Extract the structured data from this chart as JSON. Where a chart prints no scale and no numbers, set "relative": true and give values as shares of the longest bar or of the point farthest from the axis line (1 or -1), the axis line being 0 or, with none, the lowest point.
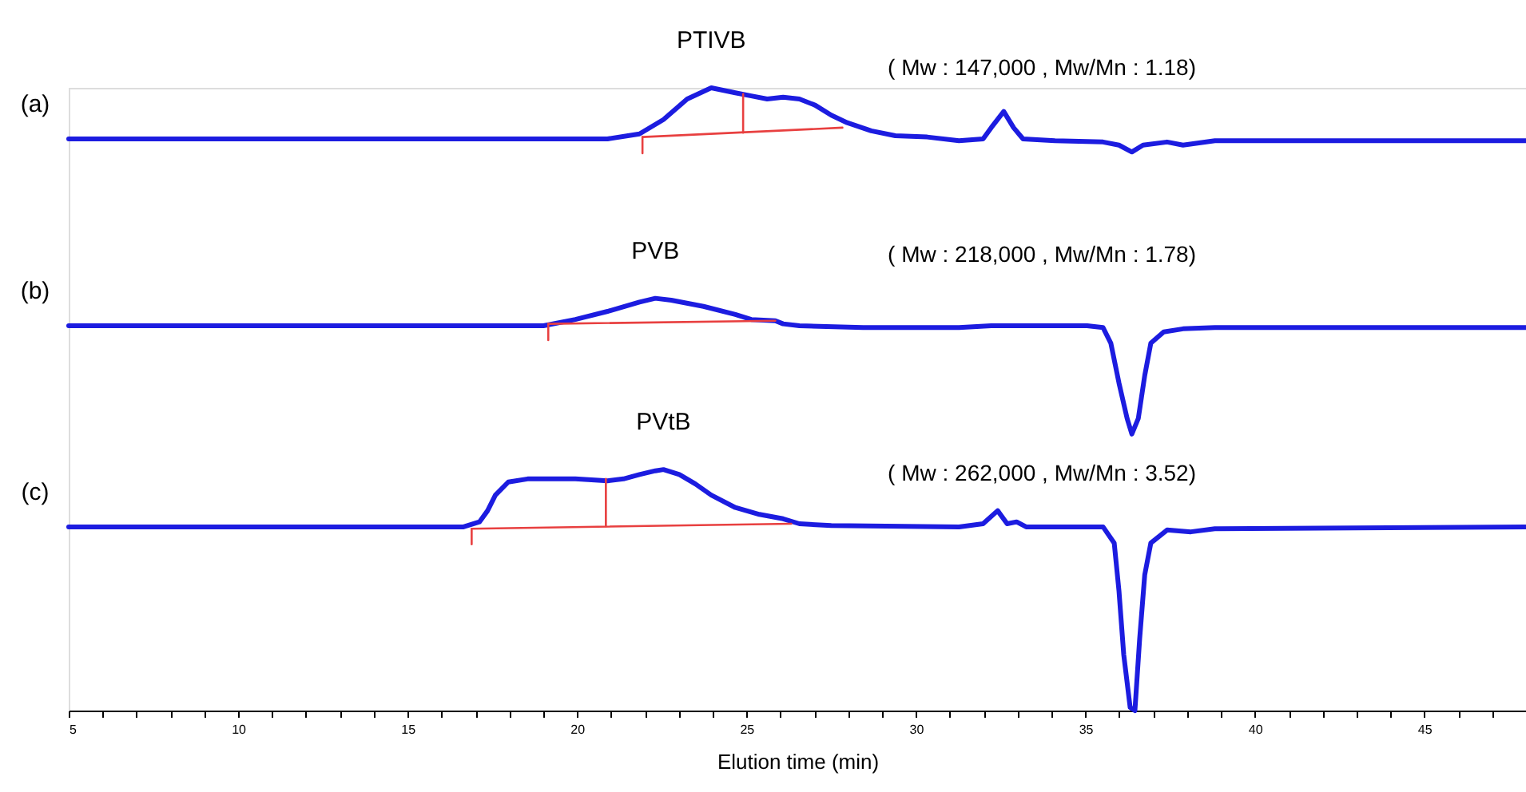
{
  "chart_data": {
    "type": "line",
    "relative": true,
    "xlabel": "Elution time (min)",
    "xlim": [
      5,
      48
    ],
    "xticks": [
      5,
      {
        "value": 6,
        "label": null
      },
      {
        "value": 7,
        "label": null
      },
      {
        "value": 8,
        "label": null
      },
      {
        "value": 9,
        "label": null
      },
      10,
      {
        "value": 11,
        "label": null
      },
      {
        "value": 12,
        "label": null
      },
      {
        "value": 13,
        "label": null
      },
      {
        "value": 14,
        "label": null
      },
      15,
      {
        "value": 16,
        "label": null
      },
      {
        "value": 17,
        "label": null
      },
      {
        "value": 18,
        "label": null
      },
      {
        "value": 19,
        "label": null
      },
      20,
      {
        "value": 21,
        "label": null
      },
      {
        "value": 22,
        "label": null
      },
      {
        "value": 23,
        "label": null
      },
      {
        "value": 24,
        "label": null
      },
      25,
      {
        "value": 26,
        "label": null
      },
      {
        "value": 27,
        "label": null
      },
      {
        "value": 28,
        "label": null
      },
      {
        "value": 29,
        "label": null
      },
      30,
      {
        "value": 31,
        "label": null
      },
      {
        "value": 32,
        "label": null
      },
      {
        "value": 33,
        "label": null
      },
      {
        "value": 34,
        "label": null
      },
      35,
      {
        "value": 36,
        "label": null
      },
      {
        "value": 37,
        "label": null
      },
      {
        "value": 38,
        "label": null
      },
      {
        "value": 39,
        "label": null
      },
      40,
      {
        "value": 41,
        "label": null
      },
      {
        "value": 42,
        "label": null
      },
      {
        "value": 43,
        "label": null
      },
      {
        "value": 44,
        "label": null
      },
      45,
      {
        "value": 46,
        "label": null
      },
      {
        "value": 47,
        "label": null
      }
    ],
    "grid": false,
    "marker": "none",
    "line_style": "solid",
    "series": [
      {
        "name": "PTIVB",
        "color": "#1c1ce0",
        "x": [
          5,
          20.9,
          21.84,
          22.55,
          23.25,
          23.96,
          24.67,
          25.14,
          25.61,
          26.08,
          26.56,
          27.03,
          27.5,
          27.97,
          28.68,
          29.39,
          30.33,
          31.27,
          31.98,
          32.22,
          32.59,
          32.88,
          33.16,
          34.1,
          35.52,
          35.99,
          36.37,
          36.7,
          37.41,
          37.88,
          38.82,
          48
        ],
        "values": [
          0.918,
          0.918,
          0.926,
          0.949,
          0.982,
          1.0,
          0.992,
          0.987,
          0.982,
          0.985,
          0.982,
          0.972,
          0.956,
          0.944,
          0.931,
          0.923,
          0.921,
          0.915,
          0.918,
          0.936,
          0.962,
          0.936,
          0.918,
          0.915,
          0.913,
          0.908,
          0.897,
          0.908,
          0.913,
          0.908,
          0.915,
          0.915
        ]
      },
      {
        "name": "PVB",
        "color": "#1c1ce0",
        "x": [
          5,
          19.01,
          19.95,
          20.9,
          21.84,
          22.31,
          22.78,
          23.73,
          24.67,
          25.14,
          25.85,
          26.08,
          26.56,
          28.44,
          31.27,
          32.22,
          35.05,
          35.52,
          35.75,
          35.99,
          36.23,
          36.37,
          36.56,
          36.75,
          36.93,
          37.31,
          37.88,
          38.82,
          48
        ],
        "values": [
          0.618,
          0.618,
          0.628,
          0.641,
          0.656,
          0.662,
          0.659,
          0.649,
          0.636,
          0.628,
          0.626,
          0.621,
          0.618,
          0.615,
          0.615,
          0.618,
          0.618,
          0.615,
          0.59,
          0.526,
          0.469,
          0.444,
          0.469,
          0.538,
          0.59,
          0.608,
          0.613,
          0.615,
          0.615
        ]
      },
      {
        "name": "PVtB",
        "color": "#1c1ce0",
        "x": [
          5,
          16.65,
          17.12,
          17.36,
          17.59,
          17.97,
          18.54,
          19.95,
          20.9,
          21.37,
          21.84,
          22.31,
          22.55,
          23.02,
          23.49,
          23.96,
          24.67,
          25.38,
          26.08,
          26.56,
          27.5,
          31.27,
          31.98,
          32.41,
          32.69,
          32.97,
          33.25,
          35.52,
          35.85,
          35.99,
          36.13,
          36.32,
          36.46,
          36.6,
          36.75,
          36.93,
          37.41,
          38.11,
          38.82,
          48
        ],
        "values": [
          0.295,
          0.295,
          0.303,
          0.321,
          0.346,
          0.367,
          0.372,
          0.372,
          0.369,
          0.372,
          0.379,
          0.385,
          0.387,
          0.379,
          0.364,
          0.346,
          0.326,
          0.315,
          0.308,
          0.3,
          0.297,
          0.295,
          0.3,
          0.321,
          0.3,
          0.303,
          0.295,
          0.295,
          0.269,
          0.192,
          0.09,
          0.005,
          0.0,
          0.115,
          0.218,
          0.269,
          0.29,
          0.287,
          0.292,
          0.295
        ]
      },
      {
        "color": "#e84040",
        "x": [
          21.93,
          27.83
        ],
        "values": [
          0.921,
          0.936
        ]
      },
      {
        "color": "#e84040",
        "x": [
          21.93,
          21.93
        ],
        "values": [
          0.895,
          0.921
        ]
      },
      {
        "color": "#e84040",
        "x": [
          24.9,
          24.9
        ],
        "values": [
          0.928,
          0.99
        ]
      },
      {
        "color": "#e84040",
        "x": [
          19.15,
          25.85
        ],
        "values": [
          0.621,
          0.626
        ]
      },
      {
        "color": "#e84040",
        "x": [
          19.15,
          19.15
        ],
        "values": [
          0.595,
          0.621
        ]
      },
      {
        "color": "#e84040",
        "x": [
          16.89,
          26.32
        ],
        "values": [
          0.292,
          0.3
        ]
      },
      {
        "color": "#e84040",
        "x": [
          16.89,
          16.89
        ],
        "values": [
          0.267,
          0.292
        ]
      },
      {
        "color": "#e84040",
        "x": [
          20.85,
          20.85
        ],
        "values": [
          0.296,
          0.372
        ]
      }
    ],
    "annotations": [
      "(a)",
      "(b)",
      "(c)",
      "( Mw : 147,000 , Mw/Mn : 1.18)",
      "( Mw : 218,000 , Mw/Mn : 1.78)",
      "( Mw : 262,000 , Mw/Mn : 3.52)"
    ]
  }
}
